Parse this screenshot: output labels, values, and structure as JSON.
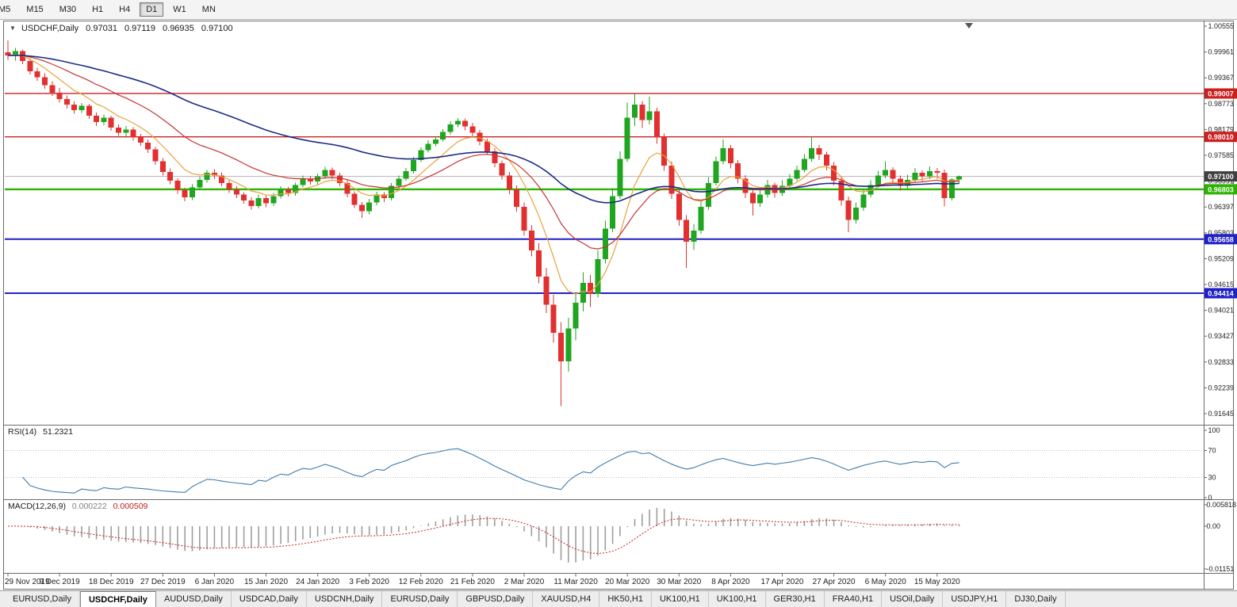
{
  "icons": {
    "dropdown": "▼"
  },
  "toolbar": {
    "timeframes": [
      "M5",
      "M15",
      "M30",
      "H1",
      "H4",
      "D1",
      "W1",
      "MN"
    ],
    "active": "D1"
  },
  "legend": {
    "symbol": "USDCHF,Daily",
    "open": "0.97031",
    "high": "0.97119",
    "low": "0.96935",
    "close": "0.97100"
  },
  "price_axis": {
    "labels": [
      "1.00555",
      "0.99961",
      "0.99367",
      "0.98773",
      "0.98179",
      "0.97585",
      "0.96991",
      "0.96397",
      "0.95803",
      "0.95209",
      "0.94615",
      "0.94021",
      "0.93427",
      "0.92833",
      "0.92239",
      "0.91645"
    ]
  },
  "hlines": [
    {
      "price": 0.99007,
      "label": "0.99007",
      "color": "#cc2020",
      "width": 1.4
    },
    {
      "price": 0.9801,
      "label": "0.98010",
      "color": "#cc2020",
      "width": 1.4
    },
    {
      "price": 0.96803,
      "label": "0.96803",
      "color": "#2db200",
      "width": 2.4
    },
    {
      "price": 0.95658,
      "label": "0.95658",
      "color": "#2020c8",
      "width": 2
    },
    {
      "price": 0.94414,
      "label": "0.94414",
      "color": "#2020c8",
      "width": 2
    }
  ],
  "current_price": {
    "value": 0.971,
    "label": "0.97100",
    "bg": "#3f3f3f",
    "line_color": "#b4b4b4"
  },
  "rsi": {
    "name": "RSI(14)",
    "value": "51.2321",
    "period": 14,
    "levels": [
      70,
      30
    ],
    "axis_labels": [
      "100",
      "70",
      "30",
      "0"
    ],
    "range": [
      0,
      100
    ],
    "color": "#3e7cad"
  },
  "macd": {
    "name": "MACD(12,26,9)",
    "macd_value": "0.000222",
    "signal_value": "0.000509",
    "fast": 12,
    "slow": 26,
    "signal_period": 9,
    "axis_labels": [
      "0.005818",
      "0.00",
      "-0.01151"
    ],
    "axis_range": [
      -0.01151,
      0.005818
    ],
    "hist_color": "#9e9e9e",
    "signal_color": "#c82020"
  },
  "tabs": {
    "active_index": 1,
    "items": [
      "EURUSD,Daily",
      "USDCHF,Daily",
      "AUDUSD,Daily",
      "USDCAD,Daily",
      "USDCNH,Daily",
      "EURUSD,Daily",
      "GBPUSD,Daily",
      "XAUUSD,H4",
      "HK50,H1",
      "UK100,H1",
      "UK100,H1",
      "GER30,H1",
      "FRA40,H1",
      "USOil,Daily",
      "USDJPY,H1",
      "DJ30,Daily"
    ]
  },
  "chart_data": {
    "type": "candlestick",
    "symbol": "USDCHF",
    "timeframe": "Daily",
    "y_range": [
      0.91645,
      1.00555
    ],
    "x_tick_step": 7,
    "x_tick_labels": [
      "29 Nov 2019",
      "9 Dec 2019",
      "18 Dec 2019",
      "27 Dec 2019",
      "6 Jan 2020",
      "15 Jan 2020",
      "24 Jan 2020",
      "3 Feb 2020",
      "12 Feb 2020",
      "21 Feb 2020",
      "2 Mar 2020",
      "11 Mar 2020",
      "20 Mar 2020",
      "30 Mar 2020",
      "8 Apr 2020",
      "17 Apr 2020",
      "27 Apr 2020",
      "6 May 2020",
      "15 May 2020"
    ],
    "up_color": "#1fa51f",
    "down_color": "#e23030",
    "moving_averages": [
      {
        "type": "ema",
        "period": 8,
        "color": "#e8a23b",
        "width": 1.2
      },
      {
        "type": "ema",
        "period": 21,
        "color": "#c83232",
        "width": 1.2
      },
      {
        "type": "ema",
        "period": 55,
        "color": "#1c2c86",
        "width": 1.6
      }
    ],
    "ohlc": [
      [
        0.9995,
        1.0023,
        0.9978,
        0.9988
      ],
      [
        0.9988,
        1.0005,
        0.9976,
        0.9998
      ],
      [
        0.9998,
        1.0002,
        0.9968,
        0.9975
      ],
      [
        0.9975,
        0.9982,
        0.9944,
        0.9952
      ],
      [
        0.9952,
        0.996,
        0.993,
        0.9938
      ],
      [
        0.9938,
        0.9947,
        0.9912,
        0.992
      ],
      [
        0.992,
        0.9929,
        0.9895,
        0.9902
      ],
      [
        0.9902,
        0.9913,
        0.988,
        0.9888
      ],
      [
        0.9888,
        0.9896,
        0.9866,
        0.9875
      ],
      [
        0.9875,
        0.9882,
        0.9854,
        0.9862
      ],
      [
        0.9862,
        0.9879,
        0.9856,
        0.9872
      ],
      [
        0.9872,
        0.9877,
        0.9842,
        0.985
      ],
      [
        0.985,
        0.9857,
        0.9826,
        0.9835
      ],
      [
        0.9835,
        0.9852,
        0.9828,
        0.9845
      ],
      [
        0.9845,
        0.985,
        0.9815,
        0.9822
      ],
      [
        0.9822,
        0.983,
        0.9803,
        0.981
      ],
      [
        0.981,
        0.9826,
        0.9802,
        0.9818
      ],
      [
        0.9818,
        0.9823,
        0.9792,
        0.98
      ],
      [
        0.98,
        0.9808,
        0.978,
        0.9788
      ],
      [
        0.9788,
        0.9795,
        0.9764,
        0.9772
      ],
      [
        0.9772,
        0.9778,
        0.9737,
        0.9745
      ],
      [
        0.9745,
        0.9752,
        0.9712,
        0.972
      ],
      [
        0.972,
        0.9728,
        0.9692,
        0.97
      ],
      [
        0.97,
        0.9706,
        0.967,
        0.9678
      ],
      [
        0.9678,
        0.9684,
        0.9653,
        0.9662
      ],
      [
        0.9662,
        0.9692,
        0.9656,
        0.9685
      ],
      [
        0.9685,
        0.9709,
        0.9679,
        0.9702
      ],
      [
        0.9702,
        0.9725,
        0.9696,
        0.9718
      ],
      [
        0.9718,
        0.9727,
        0.9704,
        0.9712
      ],
      [
        0.9712,
        0.9719,
        0.9687,
        0.9695
      ],
      [
        0.9695,
        0.9701,
        0.9672,
        0.968
      ],
      [
        0.968,
        0.9687,
        0.966,
        0.9668
      ],
      [
        0.9668,
        0.9674,
        0.9647,
        0.9655
      ],
      [
        0.9655,
        0.9662,
        0.9634,
        0.9642
      ],
      [
        0.9642,
        0.9668,
        0.9636,
        0.966
      ],
      [
        0.966,
        0.9666,
        0.9639,
        0.9648
      ],
      [
        0.9648,
        0.9672,
        0.9642,
        0.9665
      ],
      [
        0.9665,
        0.9687,
        0.9659,
        0.968
      ],
      [
        0.968,
        0.9686,
        0.9664,
        0.9672
      ],
      [
        0.9672,
        0.9696,
        0.9666,
        0.969
      ],
      [
        0.969,
        0.9712,
        0.9685,
        0.9705
      ],
      [
        0.9705,
        0.9711,
        0.9691,
        0.9698
      ],
      [
        0.9698,
        0.9717,
        0.9692,
        0.971
      ],
      [
        0.971,
        0.9732,
        0.9705,
        0.9725
      ],
      [
        0.9725,
        0.973,
        0.9704,
        0.9712
      ],
      [
        0.9712,
        0.9718,
        0.9687,
        0.9695
      ],
      [
        0.9695,
        0.9701,
        0.9662,
        0.967
      ],
      [
        0.967,
        0.9676,
        0.9637,
        0.9645
      ],
      [
        0.9645,
        0.9651,
        0.9615,
        0.963
      ],
      [
        0.963,
        0.9658,
        0.9623,
        0.965
      ],
      [
        0.965,
        0.9675,
        0.9644,
        0.9668
      ],
      [
        0.9668,
        0.9674,
        0.9651,
        0.966
      ],
      [
        0.966,
        0.9695,
        0.9655,
        0.9688
      ],
      [
        0.9688,
        0.9712,
        0.9682,
        0.9705
      ],
      [
        0.9705,
        0.9729,
        0.97,
        0.9722
      ],
      [
        0.9722,
        0.9755,
        0.9717,
        0.9748
      ],
      [
        0.9748,
        0.9777,
        0.9743,
        0.977
      ],
      [
        0.977,
        0.9793,
        0.9765,
        0.9785
      ],
      [
        0.9785,
        0.9802,
        0.9779,
        0.9795
      ],
      [
        0.9795,
        0.9819,
        0.979,
        0.9812
      ],
      [
        0.9812,
        0.9837,
        0.9807,
        0.983
      ],
      [
        0.983,
        0.9844,
        0.9823,
        0.9838
      ],
      [
        0.9838,
        0.9843,
        0.9816,
        0.9825
      ],
      [
        0.9825,
        0.9833,
        0.9802,
        0.981
      ],
      [
        0.981,
        0.9817,
        0.9781,
        0.979
      ],
      [
        0.979,
        0.9797,
        0.9759,
        0.9768
      ],
      [
        0.9768,
        0.9775,
        0.9731,
        0.974
      ],
      [
        0.974,
        0.9747,
        0.9703,
        0.9712
      ],
      [
        0.9712,
        0.972,
        0.9669,
        0.968
      ],
      [
        0.968,
        0.9689,
        0.9629,
        0.964
      ],
      [
        0.964,
        0.965,
        0.9574,
        0.9585
      ],
      [
        0.9585,
        0.9598,
        0.9526,
        0.954
      ],
      [
        0.954,
        0.9556,
        0.9464,
        0.948
      ],
      [
        0.948,
        0.95,
        0.9396,
        0.9415
      ],
      [
        0.9415,
        0.9438,
        0.9328,
        0.935
      ],
      [
        0.935,
        0.9375,
        0.9182,
        0.9285
      ],
      [
        0.9285,
        0.9385,
        0.9261,
        0.936
      ],
      [
        0.936,
        0.944,
        0.9333,
        0.942
      ],
      [
        0.942,
        0.949,
        0.94,
        0.9465
      ],
      [
        0.9465,
        0.9483,
        0.941,
        0.944
      ],
      [
        0.944,
        0.954,
        0.9431,
        0.952
      ],
      [
        0.952,
        0.9608,
        0.951,
        0.959
      ],
      [
        0.959,
        0.9683,
        0.9582,
        0.9665
      ],
      [
        0.9665,
        0.9768,
        0.9658,
        0.975
      ],
      [
        0.975,
        0.988,
        0.9743,
        0.9845
      ],
      [
        0.9845,
        0.9901,
        0.9826,
        0.9875
      ],
      [
        0.9875,
        0.9883,
        0.9821,
        0.984
      ],
      [
        0.984,
        0.9893,
        0.983,
        0.986
      ],
      [
        0.986,
        0.9868,
        0.9785,
        0.98
      ],
      [
        0.98,
        0.9809,
        0.9723,
        0.9735
      ],
      [
        0.9735,
        0.9744,
        0.9658,
        0.967
      ],
      [
        0.967,
        0.968,
        0.9596,
        0.961
      ],
      [
        0.961,
        0.9621,
        0.95,
        0.956
      ],
      [
        0.956,
        0.96,
        0.9541,
        0.9585
      ],
      [
        0.9585,
        0.9652,
        0.9578,
        0.964
      ],
      [
        0.964,
        0.9708,
        0.9633,
        0.9695
      ],
      [
        0.9695,
        0.9756,
        0.9689,
        0.9745
      ],
      [
        0.9745,
        0.9795,
        0.9738,
        0.9775
      ],
      [
        0.9775,
        0.9782,
        0.9728,
        0.974
      ],
      [
        0.974,
        0.9748,
        0.9694,
        0.9705
      ],
      [
        0.9705,
        0.9713,
        0.966,
        0.9672
      ],
      [
        0.9672,
        0.968,
        0.962,
        0.9648
      ],
      [
        0.9648,
        0.968,
        0.964,
        0.9668
      ],
      [
        0.9668,
        0.9702,
        0.9661,
        0.969
      ],
      [
        0.969,
        0.9696,
        0.9661,
        0.9672
      ],
      [
        0.9672,
        0.9701,
        0.9665,
        0.9688
      ],
      [
        0.9688,
        0.9716,
        0.9682,
        0.9705
      ],
      [
        0.9705,
        0.9735,
        0.9699,
        0.9725
      ],
      [
        0.9725,
        0.9761,
        0.9719,
        0.975
      ],
      [
        0.975,
        0.9802,
        0.9744,
        0.9775
      ],
      [
        0.9775,
        0.9782,
        0.9748,
        0.976
      ],
      [
        0.976,
        0.9767,
        0.9724,
        0.9735
      ],
      [
        0.9735,
        0.9743,
        0.9689,
        0.97
      ],
      [
        0.97,
        0.9708,
        0.9643,
        0.9655
      ],
      [
        0.9655,
        0.9664,
        0.9582,
        0.961
      ],
      [
        0.961,
        0.965,
        0.9602,
        0.9638
      ],
      [
        0.9638,
        0.9678,
        0.9631,
        0.9668
      ],
      [
        0.9668,
        0.9701,
        0.9662,
        0.969
      ],
      [
        0.969,
        0.9723,
        0.9685,
        0.9712
      ],
      [
        0.9712,
        0.9745,
        0.9706,
        0.9725
      ],
      [
        0.9725,
        0.9731,
        0.9694,
        0.9705
      ],
      [
        0.9705,
        0.9712,
        0.9677,
        0.9688
      ],
      [
        0.9688,
        0.9714,
        0.9682,
        0.9702
      ],
      [
        0.9702,
        0.9729,
        0.9696,
        0.9718
      ],
      [
        0.9718,
        0.9724,
        0.9699,
        0.971
      ],
      [
        0.971,
        0.9733,
        0.9704,
        0.9722
      ],
      [
        0.9722,
        0.9729,
        0.9705,
        0.9718
      ],
      [
        0.9718,
        0.9726,
        0.9641,
        0.966
      ],
      [
        0.966,
        0.9706,
        0.9655,
        0.9703
      ],
      [
        0.97031,
        0.97119,
        0.96935,
        0.971
      ]
    ]
  }
}
